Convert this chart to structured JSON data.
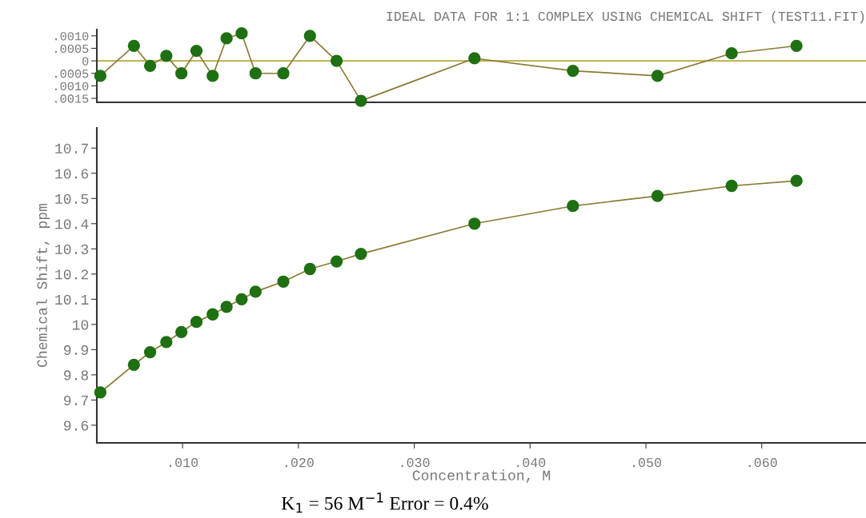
{
  "chart_data": [
    {
      "type": "line",
      "title": "IDEAL DATA FOR 1:1 COMPLEX USING CHEMICAL SHIFT (TEST11.FIT)",
      "x": [
        0.0029,
        0.0058,
        0.0072,
        0.0086,
        0.0099,
        0.0112,
        0.0126,
        0.0138,
        0.0151,
        0.0163,
        0.0187,
        0.021,
        0.0233,
        0.0254,
        0.0352,
        0.0437,
        0.051,
        0.0574,
        0.063
      ],
      "series": [
        {
          "color": "#1e7012",
          "values": [
            -0.0006,
            0.0006,
            -0.0002,
            0.0002,
            -0.0005,
            0.0004,
            -0.0006,
            0.0009,
            0.0011,
            -0.0005,
            -0.0005,
            0.001,
            0.0,
            -0.0016,
            0.0001,
            -0.0004,
            -0.0006,
            0.0003,
            0.0006
          ]
        }
      ],
      "marker": "circle",
      "line_style": "solid",
      "xlim": [
        0.0026,
        0.069
      ],
      "ylim": [
        -0.00166,
        0.00125
      ],
      "yticks": [
        {
          "value": 0.001,
          "label": ".0010"
        },
        {
          "value": 0.0005,
          "label": ".0005"
        },
        0,
        {
          "value": -0.0005,
          "label": ".0005"
        },
        {
          "value": -0.001,
          "label": ".0010"
        },
        {
          "value": -0.0015,
          "label": ".0015"
        }
      ],
      "tick_labels": "y",
      "ref_lines": [
        {
          "axis": "y",
          "value": 0,
          "color": "#b8a83a"
        }
      ]
    },
    {
      "type": "line",
      "xlabel": "Concentration, M",
      "ylabel": "Chemical Shift, ppm",
      "x": [
        0.0029,
        0.0058,
        0.0072,
        0.0086,
        0.0099,
        0.0112,
        0.0126,
        0.0138,
        0.0151,
        0.0163,
        0.0187,
        0.021,
        0.0233,
        0.0254,
        0.0352,
        0.0437,
        0.051,
        0.0574,
        0.063
      ],
      "series": [
        {
          "color": "#1e7012",
          "values": [
            9.73,
            9.84,
            9.89,
            9.93,
            9.97,
            10.01,
            10.04,
            10.07,
            10.1,
            10.13,
            10.17,
            10.22,
            10.25,
            10.28,
            10.4,
            10.47,
            10.51,
            10.55,
            10.57
          ]
        }
      ],
      "marker": "circle",
      "line_style": "solid",
      "xlim": [
        0.0026,
        0.069
      ],
      "ylim": [
        9.53,
        10.78
      ],
      "xticks": [
        {
          "value": 0.01,
          "label": ".010"
        },
        {
          "value": 0.02,
          "label": ".020"
        },
        {
          "value": 0.03,
          "label": ".030"
        },
        {
          "value": 0.04,
          "label": ".040"
        },
        {
          "value": 0.05,
          "label": ".050"
        },
        {
          "value": 0.06,
          "label": ".060"
        }
      ],
      "yticks": [
        9.6,
        9.7,
        9.8,
        9.9,
        10,
        10.1,
        10.2,
        10.3,
        10.4,
        10.5,
        10.6,
        10.7
      ],
      "annotations": [
        "K$_{1}$ = 56 M$^{−1}$ Error = 0.4%"
      ]
    }
  ]
}
